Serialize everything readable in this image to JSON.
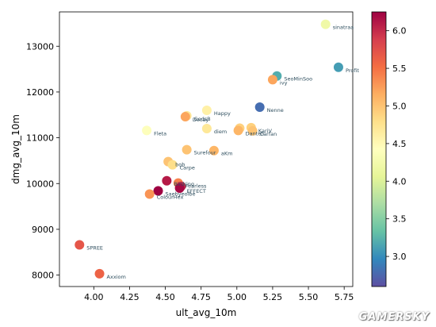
{
  "watermark": "GAMERSKY",
  "chart_data": {
    "type": "scatter",
    "xlabel": "ult_avg_10m",
    "ylabel": "dmg_avg_10m",
    "xlim": [
      3.76,
      5.81
    ],
    "ylim": [
      7750,
      13750
    ],
    "xticks": [
      "4.00",
      "4.25",
      "4.50",
      "4.75",
      "5.00",
      "5.25",
      "5.50",
      "5.75"
    ],
    "yticks": [
      "8000",
      "9000",
      "10000",
      "11000",
      "12000",
      "13000"
    ],
    "grid": false,
    "colorbar": {
      "colormap": "Spectral_r",
      "range": [
        2.6,
        6.25
      ],
      "ticks": [
        "3.0",
        "3.5",
        "4.0",
        "4.5",
        "5.0",
        "5.5",
        "6.0"
      ]
    },
    "points": [
      {
        "label": "sinatraa",
        "x": 5.62,
        "y": 13480,
        "c": 4.2
      },
      {
        "label": "Profit",
        "x": 5.71,
        "y": 12540,
        "c": 3.1
      },
      {
        "label": "SeoMinSoo",
        "x": 5.28,
        "y": 12350,
        "c": 3.2
      },
      {
        "label": "ivy",
        "x": 5.25,
        "y": 12270,
        "c": 5.2
      },
      {
        "label": "Nenne",
        "x": 5.16,
        "y": 11670,
        "c": 2.8
      },
      {
        "label": "Happy",
        "x": 4.79,
        "y": 11600,
        "c": 4.6
      },
      {
        "label": "GodsB",
        "x": 4.65,
        "y": 11480,
        "c": 4.7
      },
      {
        "label": "Decay",
        "x": 4.64,
        "y": 11460,
        "c": 5.2
      },
      {
        "label": "Fleta",
        "x": 4.37,
        "y": 11160,
        "c": 4.4
      },
      {
        "label": "diem",
        "x": 4.79,
        "y": 11200,
        "c": 4.7
      },
      {
        "label": "LIP",
        "x": 5.02,
        "y": 11210,
        "c": 4.9
      },
      {
        "label": "Danteh",
        "x": 5.01,
        "y": 11160,
        "c": 5.1
      },
      {
        "label": "KariV",
        "x": 5.1,
        "y": 11220,
        "c": 4.9
      },
      {
        "label": "Carfan",
        "x": 5.11,
        "y": 11150,
        "c": 5.0
      },
      {
        "label": "Surefour",
        "x": 4.65,
        "y": 10740,
        "c": 5.0
      },
      {
        "label": "aKm",
        "x": 4.84,
        "y": 10720,
        "c": 5.1
      },
      {
        "label": "bob",
        "x": 4.52,
        "y": 10480,
        "c": 5.0
      },
      {
        "label": "Carpe",
        "x": 4.55,
        "y": 10410,
        "c": 4.8
      },
      {
        "label": "Birdring",
        "x": 4.51,
        "y": 10060,
        "c": 6.1
      },
      {
        "label": "Fearless",
        "x": 4.59,
        "y": 10010,
        "c": 5.4
      },
      {
        "label": "STRIKER",
        "x": 4.61,
        "y": 9940,
        "c": 6.0
      },
      {
        "label": "EFFECT",
        "x": 4.6,
        "y": 9900,
        "c": 6.2
      },
      {
        "label": "Saebyeolbe",
        "x": 4.45,
        "y": 9840,
        "c": 6.25
      },
      {
        "label": "ColourHex",
        "x": 4.39,
        "y": 9770,
        "c": 5.3
      },
      {
        "label": "SPREE",
        "x": 3.9,
        "y": 8660,
        "c": 5.7
      },
      {
        "label": "Axxiom",
        "x": 4.04,
        "y": 8030,
        "c": 5.6
      }
    ],
    "labels_shown": [
      {
        "text": "sinatraa",
        "pt": 0
      },
      {
        "text": "Profit",
        "pt": 1
      },
      {
        "text": "SeoMinSoo",
        "pt": 2
      },
      {
        "text": "ivy",
        "pt": 3
      },
      {
        "text": "Nenne",
        "pt": 4
      },
      {
        "text": "Happy",
        "pt": 5
      },
      {
        "text": "GodsB",
        "pt": 6
      },
      {
        "text": "Decay",
        "pt": 7
      },
      {
        "text": "Fleta",
        "pt": 8
      },
      {
        "text": "diem",
        "pt": 9
      },
      {
        "text": "Danteh",
        "pt": 11
      },
      {
        "text": "KariV",
        "pt": 12
      },
      {
        "text": "Carfan",
        "pt": 13
      },
      {
        "text": "Surefour",
        "pt": 14
      },
      {
        "text": "aKm",
        "pt": 15
      },
      {
        "text": "bob",
        "pt": 16
      },
      {
        "text": "Carpe",
        "pt": 17
      },
      {
        "text": "Birdring",
        "pt": 18
      },
      {
        "text": "Fearless",
        "pt": 19
      },
      {
        "text": "EFFECT",
        "pt": 21
      },
      {
        "text": "Saebyeolbe",
        "pt": 22
      },
      {
        "text": "ColourHex",
        "pt": 23
      },
      {
        "text": "SPREE",
        "pt": 24
      },
      {
        "text": "Axxiom",
        "pt": 25
      }
    ]
  }
}
